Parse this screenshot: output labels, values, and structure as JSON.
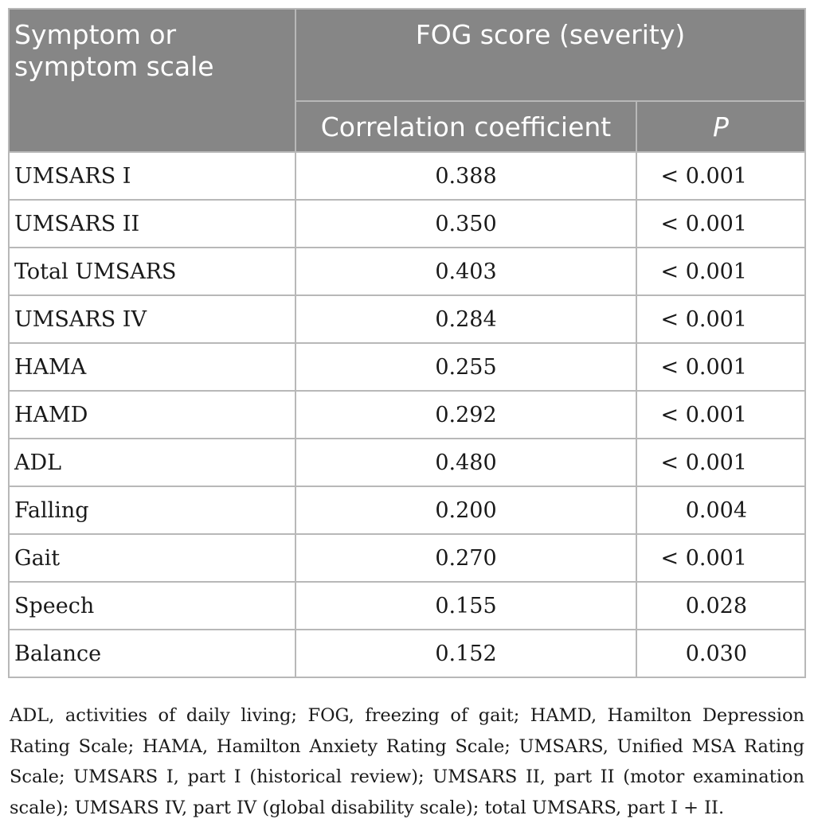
{
  "table": {
    "header": {
      "symptom_col": "Symptom or symptom scale",
      "group": "FOG score (severity)",
      "coef_col": "Correlation coefficient",
      "p_col": "P"
    },
    "rows": [
      {
        "name": "UMSARS I",
        "coef": "0.388",
        "p": "< 0.001"
      },
      {
        "name": "UMSARS II",
        "coef": "0.350",
        "p": "< 0.001"
      },
      {
        "name": "Total UMSARS",
        "coef": "0.403",
        "p": "< 0.001"
      },
      {
        "name": "UMSARS IV",
        "coef": "0.284",
        "p": "< 0.001"
      },
      {
        "name": "HAMA",
        "coef": "0.255",
        "p": "< 0.001"
      },
      {
        "name": "HAMD",
        "coef": "0.292",
        "p": "< 0.001"
      },
      {
        "name": "ADL",
        "coef": "0.480",
        "p": "< 0.001"
      },
      {
        "name": "Falling",
        "coef": "0.200",
        "p": "0.004"
      },
      {
        "name": "Gait",
        "coef": "0.270",
        "p": "< 0.001"
      },
      {
        "name": "Speech",
        "coef": "0.155",
        "p": "0.028"
      },
      {
        "name": "Balance",
        "coef": "0.152",
        "p": "0.030"
      }
    ]
  },
  "footnote": "ADL, activities of daily living; FOG, freezing of gait; HAMD, Hamilton Depression Rating Scale; HAMA, Hamilton Anxiety Rating Scale; UMSARS, Unified MSA Rating Scale; UMSARS I, part I (historical review); UMSARS II, part II (motor examination scale); UMSARS IV, part IV (global disability scale); total UMSARS, part I + II."
}
